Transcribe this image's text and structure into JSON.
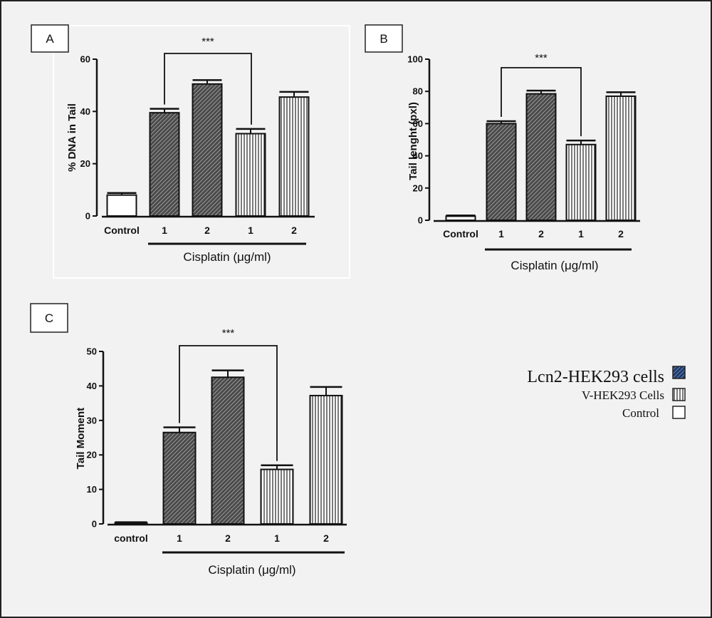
{
  "colors": {
    "lcn2": "#444444",
    "v": "#ffffff",
    "control": "#ffffff",
    "legend_lcn2": "#1f3a6a"
  },
  "chart_data": [
    {
      "type": "bar",
      "panel_label": "A",
      "ylabel": "% DNA in Tail",
      "xlabel": "Cisplatin (μg/ml)",
      "categories": [
        "Control",
        "1",
        "2",
        "1",
        "2"
      ],
      "values": [
        8,
        39.5,
        50.5,
        31.5,
        45.5
      ],
      "errors": [
        0.8,
        1.5,
        1.5,
        1.8,
        2.0
      ],
      "groups": [
        "control",
        "lcn2",
        "lcn2",
        "v",
        "v"
      ],
      "ylim": [
        0,
        60
      ],
      "yticks": [
        "0",
        "20",
        "40",
        "60"
      ],
      "significance": "***"
    },
    {
      "type": "bar",
      "panel_label": "B",
      "ylabel": "Tail lenght (pxl)",
      "xlabel": "Cisplatin (μg/ml)",
      "categories": [
        "Control",
        "1",
        "2",
        "1",
        "2"
      ],
      "values": [
        2.5,
        60,
        78.5,
        47,
        77
      ],
      "errors": [
        0.5,
        1.5,
        2.0,
        2.5,
        2.5
      ],
      "groups": [
        "control",
        "lcn2",
        "lcn2",
        "v",
        "v"
      ],
      "ylim": [
        0,
        100
      ],
      "yticks": [
        "0",
        "20",
        "40",
        "60",
        "80",
        "100"
      ],
      "significance": "***"
    },
    {
      "type": "bar",
      "panel_label": "C",
      "ylabel": "Tail Moment",
      "xlabel": "Cisplatin (μg/ml)",
      "categories": [
        "control",
        "1",
        "2",
        "1",
        "2"
      ],
      "values": [
        0.3,
        26.5,
        42.5,
        15.8,
        37.2
      ],
      "errors": [
        0.2,
        1.5,
        2.0,
        1.2,
        2.5
      ],
      "groups": [
        "control",
        "lcn2",
        "lcn2",
        "v",
        "v"
      ],
      "ylim": [
        0,
        50
      ],
      "yticks": [
        "0",
        "10",
        "20",
        "30",
        "40",
        "50"
      ],
      "significance": "***"
    }
  ],
  "legend": [
    {
      "label": "Lcn2-HEK293 cells",
      "group": "lcn2"
    },
    {
      "label": "V-HEK293 Cells",
      "group": "v"
    },
    {
      "label": "Control",
      "group": "control"
    }
  ]
}
